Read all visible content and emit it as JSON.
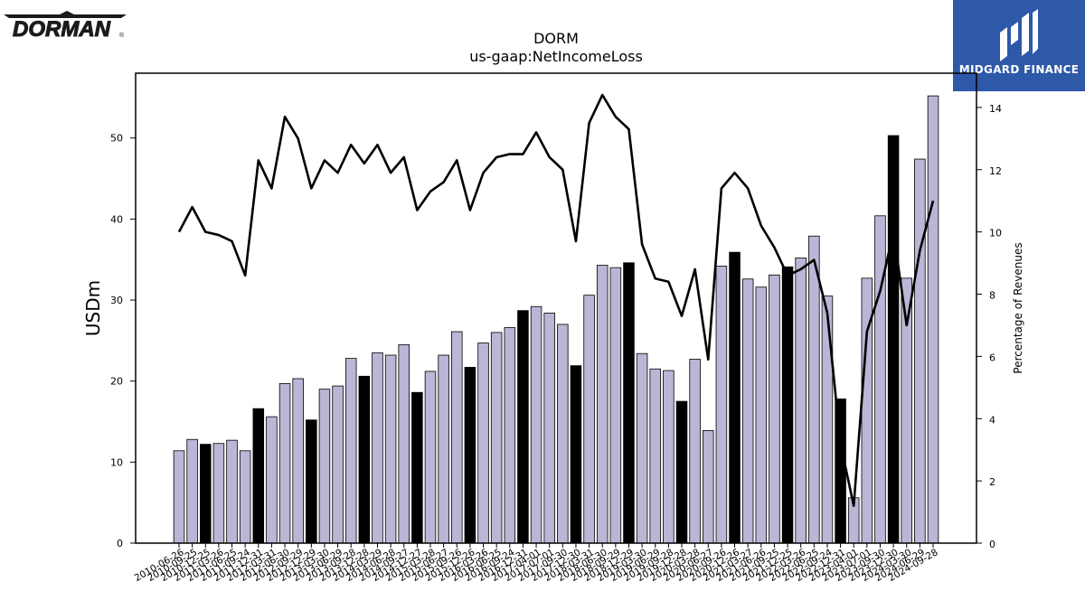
{
  "branding": {
    "left_logo": "DORMAN",
    "left_logo_mark": "®",
    "right_logo_icon": "midgard-m-icon",
    "right_logo": "MIDGARD FINANCE",
    "right_logo_color": "#2e58a8"
  },
  "chart_data": {
    "type": "bar",
    "title": "DORM",
    "subtitle": "us-gaap:NetIncomeLoss",
    "ylabel": "USDm",
    "y2label": "Percentage of Revenues",
    "ylim": [
      0,
      58
    ],
    "y2lim": [
      0,
      15.1
    ],
    "yticks": [
      0,
      10,
      20,
      30,
      40,
      50
    ],
    "y2ticks": [
      0,
      2,
      4,
      6,
      8,
      10,
      12,
      14
    ],
    "grid": false,
    "bar_color": "#b9b6d6",
    "highlight_color": "#000000",
    "line_color": "#000000",
    "categories": [
      "2010-06-26",
      "2010-09-25",
      "2010-12-25",
      "2011-03-26",
      "2011-06-25",
      "2011-09-24",
      "2011-12-31",
      "2012-03-31",
      "2012-06-30",
      "2012-09-29",
      "2012-12-29",
      "2013-03-30",
      "2013-06-29",
      "2013-09-28",
      "2013-12-28",
      "2014-03-29",
      "2014-06-28",
      "2014-09-27",
      "2014-12-27",
      "2015-03-28",
      "2015-06-27",
      "2015-09-26",
      "2015-12-26",
      "2016-03-26",
      "2016-06-25",
      "2016-09-24",
      "2016-12-31",
      "2017-04-01",
      "2017-07-01",
      "2017-09-30",
      "2017-12-30",
      "2018-03-31",
      "2018-06-30",
      "2018-09-29",
      "2018-12-29",
      "2019-03-30",
      "2019-06-29",
      "2019-09-28",
      "2019-12-28",
      "2020-03-28",
      "2020-06-27",
      "2020-09-26",
      "2020-12-26",
      "2021-03-27",
      "2021-06-26",
      "2021-09-25",
      "2021-12-25",
      "2022-03-26",
      "2022-06-25",
      "2022-09-24",
      "2022-12-31",
      "2023-04-01",
      "2023-07-01",
      "2023-09-30",
      "2023-12-30",
      "2024-03-30",
      "2024-06-29",
      "2024-09-28"
    ],
    "tick_labels": [
      "2010-06-26",
      "2010-09-25",
      "2010-12-25",
      "2011-03-26",
      "2011-06-25",
      "2011-09-24",
      "2011-12-31",
      "2012-03-31",
      "2012-06-30",
      "2012-09-29",
      "2012-12-29",
      "2013-03-30",
      "2013-06-29",
      "2013-09-28",
      "2013-12-28",
      "2014-03-29",
      "2014-06-28",
      "2014-09-27",
      "2014-12-27",
      "2015-03-28",
      "2015-06-27",
      "2015-09-26",
      "2015-12-26",
      "2016-03-26",
      "2016-06-25",
      "2016-09-24",
      "2016-12-31",
      "2017-04-01",
      "2017-07-01",
      "2017-09-30",
      "2017-12-30",
      "2018-03-31",
      "2018-06-30",
      "2018-09-29",
      "2018-12-29",
      "2019-03-30",
      "2019-06-29",
      "2019-09-28",
      "2019-12-28",
      "2020-03-28",
      "2020-06-27",
      "2020-09-26",
      "2020-12-26",
      "2021-03-27",
      "2021-06-26",
      "2021-09-25",
      "2021-12-25",
      "2022-03-26",
      "2022-06-25",
      "2022-09-24",
      "2022-12-31",
      "2023-04-01",
      "2023-07-01",
      "2023-09-30",
      "2023-12-30",
      "2024-03-30",
      "2024-06-29",
      "2024-09-28"
    ],
    "series": [
      {
        "type": "bar",
        "axis": "left",
        "values": [
          11.4,
          12.8,
          12.2,
          12.3,
          12.7,
          11.4,
          16.6,
          15.6,
          19.7,
          20.3,
          15.2,
          19.0,
          19.4,
          22.8,
          20.6,
          23.5,
          23.2,
          24.5,
          18.6,
          21.2,
          23.2,
          26.1,
          21.7,
          24.7,
          26.0,
          26.6,
          28.7,
          29.2,
          28.4,
          27.0,
          21.9,
          30.6,
          34.3,
          34.0,
          34.6,
          23.4,
          21.5,
          21.3,
          17.5,
          22.7,
          13.9,
          34.2,
          35.9,
          32.6,
          31.6,
          33.1,
          34.1,
          35.2,
          37.9,
          30.5,
          17.8,
          5.6,
          32.7,
          40.4,
          50.3,
          32.7,
          47.4,
          55.2
        ],
        "highlight": [
          false,
          false,
          true,
          false,
          false,
          false,
          true,
          false,
          false,
          false,
          true,
          false,
          false,
          false,
          true,
          false,
          false,
          false,
          true,
          false,
          false,
          false,
          true,
          false,
          false,
          false,
          true,
          false,
          false,
          false,
          true,
          false,
          false,
          false,
          true,
          false,
          false,
          false,
          true,
          false,
          false,
          false,
          true,
          false,
          false,
          false,
          true,
          false,
          false,
          false,
          true,
          false,
          false,
          false,
          true,
          false,
          false,
          false
        ]
      },
      {
        "type": "line",
        "axis": "right",
        "values": [
          10.0,
          10.8,
          10.0,
          9.9,
          9.7,
          8.6,
          12.3,
          11.4,
          13.7,
          13.0,
          11.4,
          12.3,
          11.9,
          12.8,
          12.2,
          12.8,
          11.9,
          12.4,
          10.7,
          11.3,
          11.6,
          12.3,
          10.7,
          11.9,
          12.4,
          12.5,
          12.5,
          13.2,
          12.4,
          12.0,
          9.7,
          13.5,
          14.4,
          13.7,
          13.3,
          9.6,
          8.5,
          8.4,
          7.3,
          8.8,
          5.9,
          11.4,
          11.9,
          11.4,
          10.2,
          9.5,
          8.6,
          8.8,
          9.1,
          7.4,
          3.2,
          1.2,
          6.8,
          8.1,
          10.0,
          7.0,
          9.4,
          11.0
        ]
      }
    ]
  }
}
